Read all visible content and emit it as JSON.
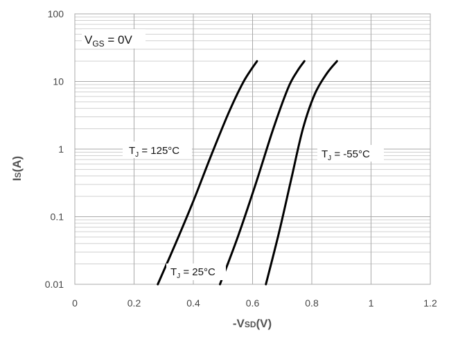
{
  "chart_data": {
    "type": "line",
    "xlabel": {
      "prefix": "-V",
      "sub": "SD",
      "suffix": "(V)"
    },
    "ylabel": {
      "prefix": "I",
      "sub": "S",
      "suffix": "(A)"
    },
    "xlim": [
      0,
      1.2
    ],
    "ylim": [
      0.01,
      100
    ],
    "yscale": "log",
    "grid": true,
    "x_ticks": [
      0,
      0.2,
      0.4,
      0.6,
      0.8,
      1,
      1.2
    ],
    "x_tick_labels": [
      "0",
      "0.2",
      "0.4",
      "0.6",
      "0.8",
      "1",
      "1.2"
    ],
    "y_ticks": [
      0.01,
      0.1,
      1,
      10,
      100
    ],
    "y_tick_labels": [
      "0.01",
      "0.1",
      "1",
      "10",
      "100"
    ],
    "annotation": {
      "main": "V",
      "sub": "GS",
      "rest": " = 0V"
    },
    "series": [
      {
        "name_main": "T",
        "name_sub": "J",
        "name_rest": " = 125°C",
        "x": [
          0.28,
          0.34,
          0.4,
          0.46,
          0.52,
          0.57,
          0.615
        ],
        "y": [
          0.01,
          0.04,
          0.17,
          0.8,
          3.5,
          10,
          20
        ]
      },
      {
        "name_main": "T",
        "name_sub": "J",
        "name_rest": " = 25°C",
        "x": [
          0.49,
          0.55,
          0.61,
          0.67,
          0.72,
          0.75,
          0.775
        ],
        "y": [
          0.01,
          0.05,
          0.3,
          2,
          8,
          14,
          20
        ]
      },
      {
        "name_main": "T",
        "name_sub": "J",
        "name_rest": " = -55°C",
        "x": [
          0.645,
          0.69,
          0.73,
          0.77,
          0.81,
          0.85,
          0.885
        ],
        "y": [
          0.01,
          0.06,
          0.35,
          2,
          6.5,
          13,
          20
        ]
      }
    ],
    "colors": {
      "line": "#000000",
      "grid_major": "#a8a8a8",
      "grid_minor": "#d0d0d0"
    }
  }
}
